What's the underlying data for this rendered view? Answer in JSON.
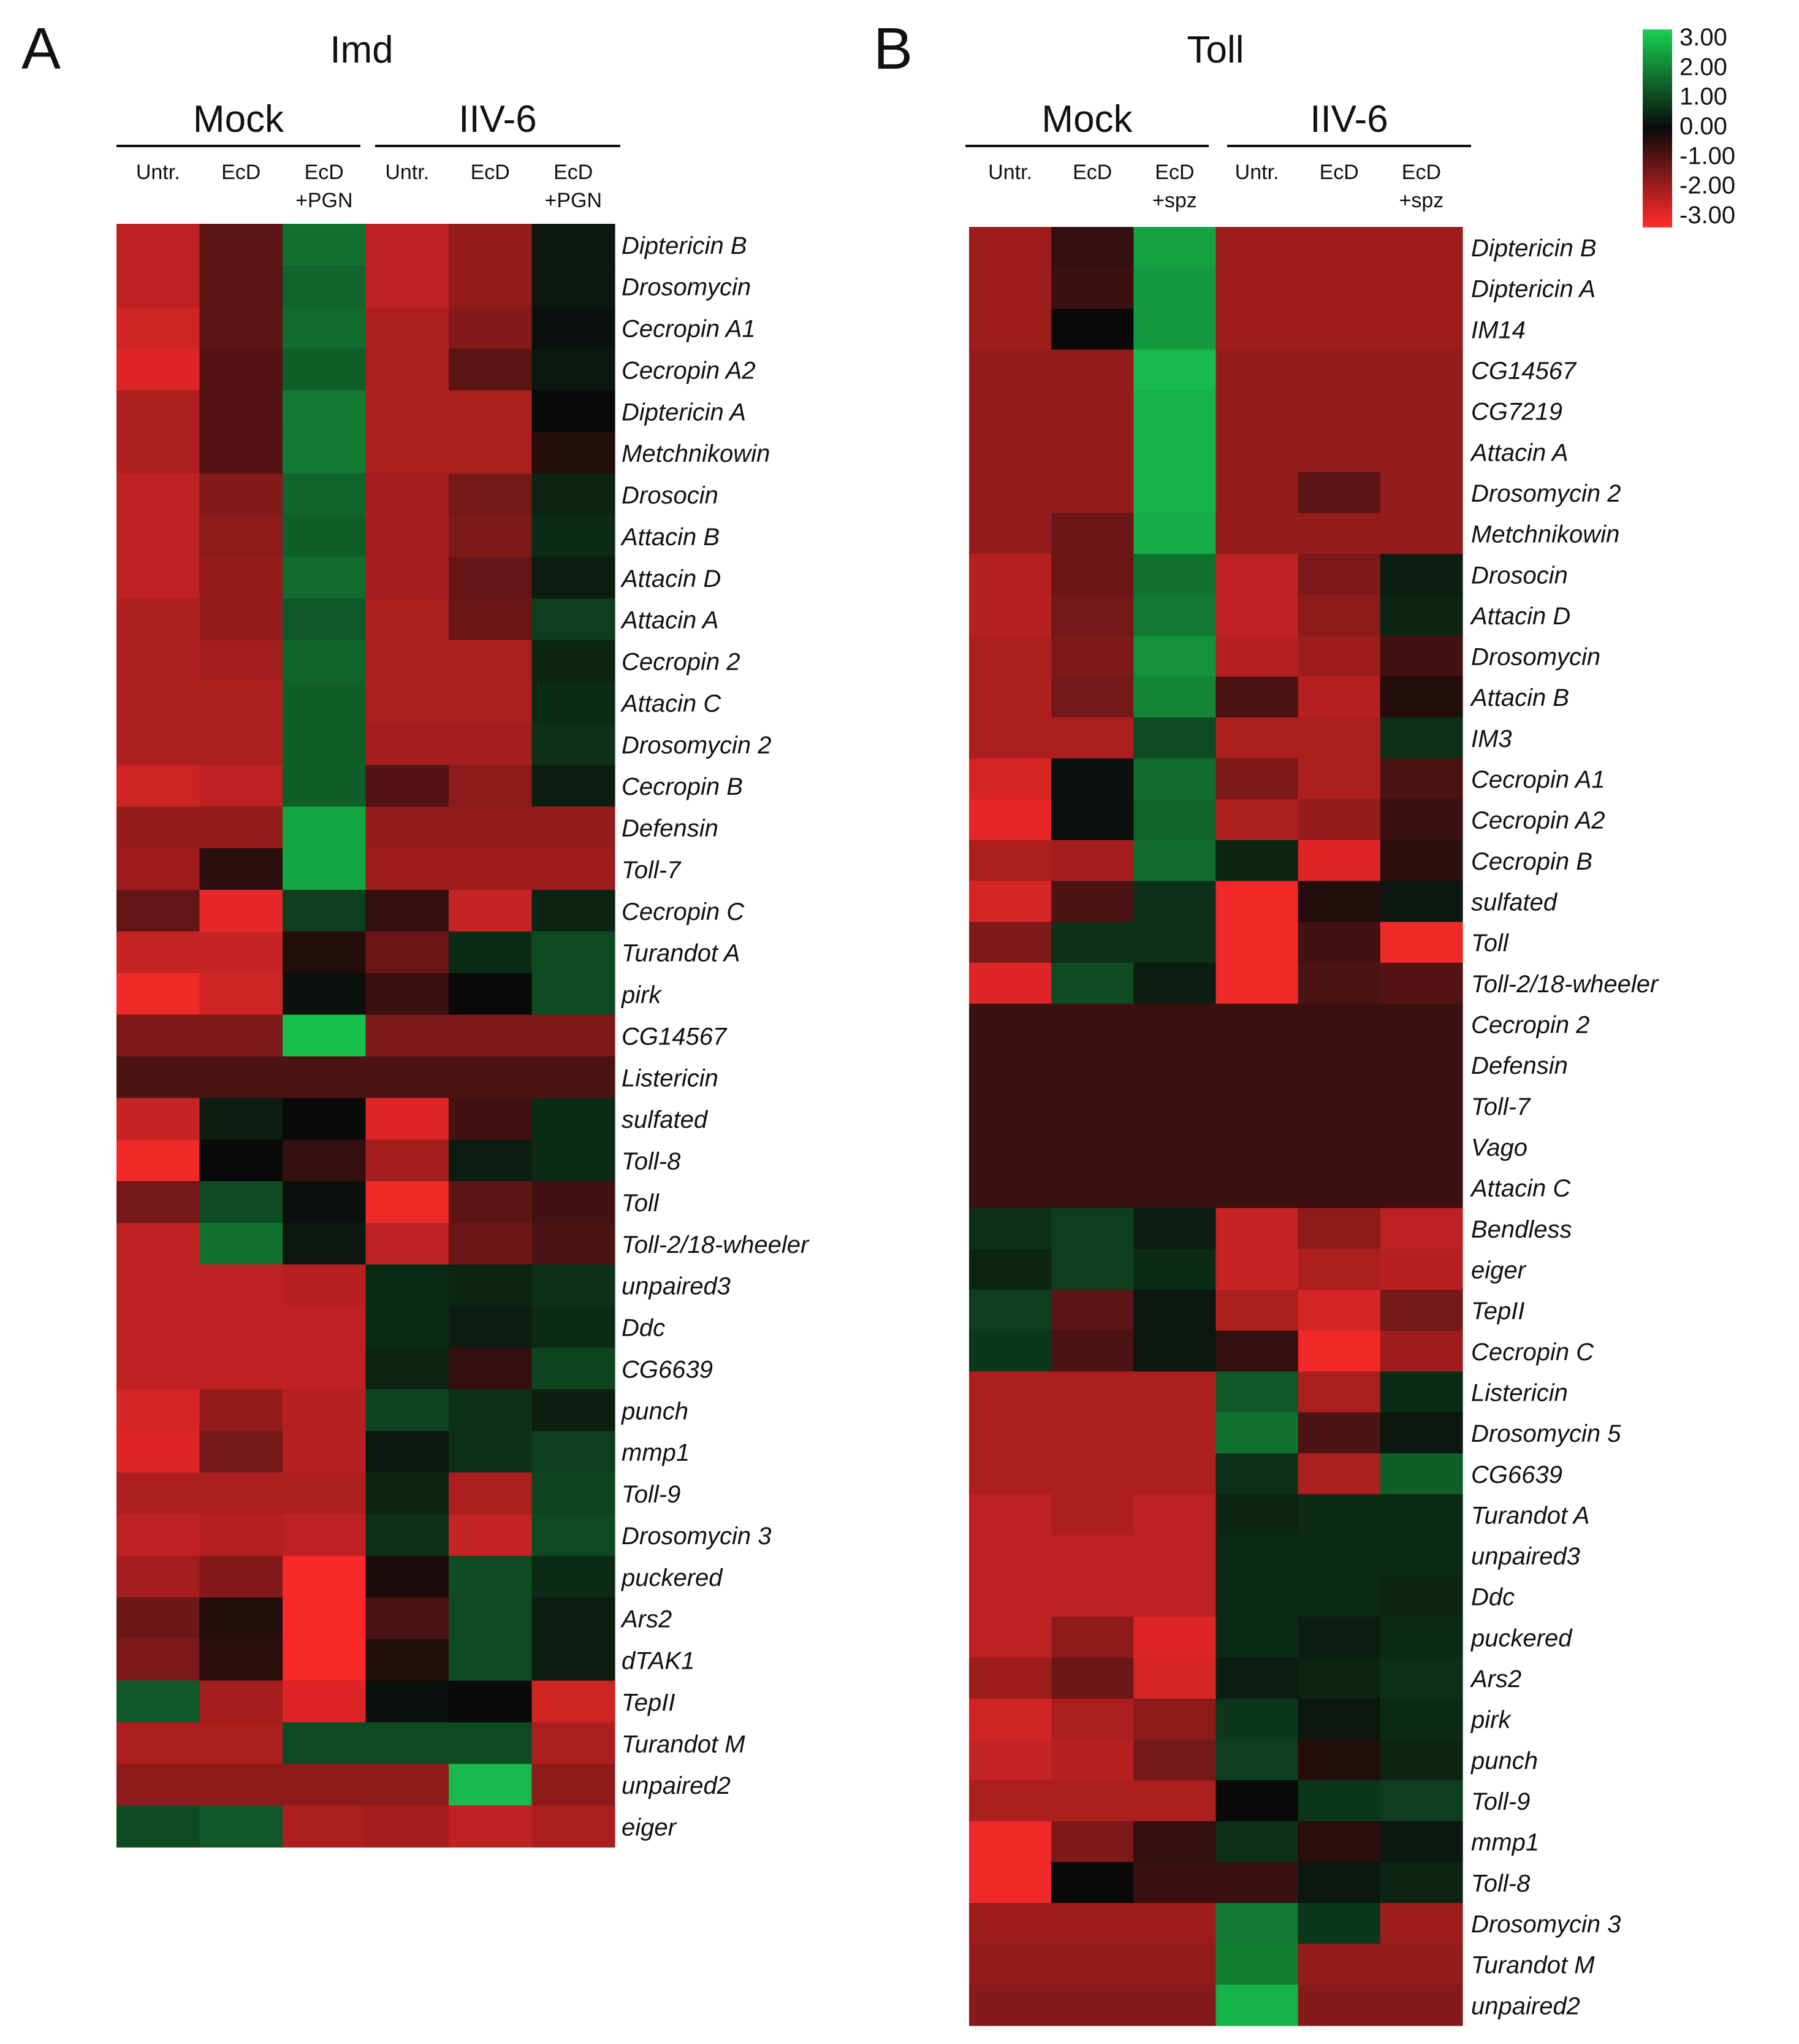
{
  "figure": {
    "legend": {
      "labels": [
        "3.00",
        "2.00",
        "1.00",
        "0.00",
        "-1.00",
        "-2.00",
        "-3.00"
      ],
      "colors": [
        "#18c850",
        "#0f9a3c",
        "#0b5a28",
        "#0a0a0a",
        "#5e0f12",
        "#b81c22",
        "#ff2a2a"
      ]
    }
  },
  "chart_data": [
    {
      "type": "heatmap",
      "panel": "A",
      "title": "Imd",
      "groups": [
        "Mock",
        "IIV-6"
      ],
      "columns": [
        "Untr.",
        "EcD",
        "EcD\n+PGN",
        "Untr.",
        "EcD",
        "EcD\n+PGN"
      ],
      "value_range": [
        -3,
        3
      ],
      "rows": [
        {
          "gene": "Diptericin B",
          "values": [
            -2.2,
            -1.0,
            1.6,
            -2.2,
            -1.7,
            0.2
          ]
        },
        {
          "gene": "Drosomycin",
          "values": [
            -2.2,
            -1.0,
            1.4,
            -2.2,
            -1.7,
            0.2
          ]
        },
        {
          "gene": "Cecropin A1",
          "values": [
            -2.4,
            -1.0,
            1.5,
            -2.0,
            -1.5,
            0.1
          ]
        },
        {
          "gene": "Cecropin A2",
          "values": [
            -2.6,
            -0.9,
            1.3,
            -2.0,
            -1.0,
            0.2
          ]
        },
        {
          "gene": "Diptericin A",
          "values": [
            -2.0,
            -0.9,
            1.7,
            -2.0,
            -2.0,
            0.0
          ]
        },
        {
          "gene": "Metchnikowin",
          "values": [
            -2.0,
            -0.9,
            1.7,
            -2.0,
            -2.0,
            -0.3
          ]
        },
        {
          "gene": "Drosocin",
          "values": [
            -2.2,
            -1.5,
            1.4,
            -1.9,
            -1.3,
            0.4
          ]
        },
        {
          "gene": "Attacin B",
          "values": [
            -2.2,
            -1.6,
            1.3,
            -1.9,
            -1.4,
            0.5
          ]
        },
        {
          "gene": "Attacin D",
          "values": [
            -2.2,
            -1.7,
            1.5,
            -1.9,
            -1.1,
            0.3
          ]
        },
        {
          "gene": "Attacin A",
          "values": [
            -2.0,
            -1.7,
            1.2,
            -2.0,
            -1.2,
            0.8
          ]
        },
        {
          "gene": "Cecropin 2",
          "values": [
            -2.0,
            -1.9,
            1.4,
            -2.0,
            -2.0,
            0.4
          ]
        },
        {
          "gene": "Attacin C",
          "values": [
            -2.0,
            -2.0,
            1.3,
            -2.0,
            -2.0,
            0.5
          ]
        },
        {
          "gene": "Drosomycin 2",
          "values": [
            -2.0,
            -2.0,
            1.3,
            -1.9,
            -1.9,
            0.6
          ]
        },
        {
          "gene": "Cecropin B",
          "values": [
            -2.4,
            -2.2,
            1.3,
            -0.9,
            -1.6,
            0.3
          ]
        },
        {
          "gene": "Defensin",
          "values": [
            -1.7,
            -1.7,
            2.4,
            -1.7,
            -1.7,
            -1.7
          ]
        },
        {
          "gene": "Toll-7",
          "values": [
            -1.8,
            -0.4,
            2.4,
            -1.8,
            -1.8,
            -1.8
          ]
        },
        {
          "gene": "Cecropin C",
          "values": [
            -1.1,
            -2.7,
            0.8,
            -0.5,
            -2.3,
            0.4
          ]
        },
        {
          "gene": "Turandot A",
          "values": [
            -2.3,
            -2.3,
            -0.3,
            -1.2,
            0.5,
            1.0
          ]
        },
        {
          "gene": "pirk",
          "values": [
            -2.8,
            -2.4,
            0.1,
            -0.6,
            0.0,
            1.0
          ]
        },
        {
          "gene": "CG14567",
          "values": [
            -1.4,
            -1.4,
            2.8,
            -1.4,
            -1.4,
            -1.4
          ]
        },
        {
          "gene": "Listericin",
          "values": [
            -0.8,
            -0.8,
            -0.8,
            -0.8,
            -0.8,
            -0.8
          ]
        },
        {
          "gene": "sulfated",
          "values": [
            -2.3,
            0.3,
            0.0,
            -2.6,
            -0.7,
            0.5
          ]
        },
        {
          "gene": "Toll-8",
          "values": [
            -2.8,
            0.0,
            -0.5,
            -1.9,
            0.3,
            0.5
          ]
        },
        {
          "gene": "Toll",
          "values": [
            -1.3,
            1.0,
            0.1,
            -2.8,
            -1.0,
            -0.7
          ]
        },
        {
          "gene": "Toll-2/18-wheeler",
          "values": [
            -2.2,
            1.6,
            0.2,
            -2.2,
            -1.2,
            -0.8
          ]
        },
        {
          "gene": "unpaired3",
          "values": [
            -2.2,
            -2.2,
            -2.1,
            0.5,
            0.4,
            0.6
          ]
        },
        {
          "gene": "Ddc",
          "values": [
            -2.2,
            -2.2,
            -2.2,
            0.5,
            0.3,
            0.5
          ]
        },
        {
          "gene": "CG6639",
          "values": [
            -2.2,
            -2.2,
            -2.2,
            0.4,
            -0.5,
            0.9
          ]
        },
        {
          "gene": "punch",
          "values": [
            -2.5,
            -1.7,
            -2.1,
            0.9,
            0.6,
            0.3
          ]
        },
        {
          "gene": "mmp1",
          "values": [
            -2.6,
            -1.3,
            -2.1,
            0.2,
            0.6,
            0.8
          ]
        },
        {
          "gene": "Toll-9",
          "values": [
            -2.0,
            -2.0,
            -2.0,
            0.4,
            -2.0,
            0.9
          ]
        },
        {
          "gene": "Drosomycin 3",
          "values": [
            -2.2,
            -2.1,
            -2.2,
            0.6,
            -2.3,
            1.0
          ]
        },
        {
          "gene": "puckered",
          "values": [
            -1.9,
            -1.5,
            -2.9,
            -0.2,
            1.0,
            0.5
          ]
        },
        {
          "gene": "Ars2",
          "values": [
            -1.2,
            -0.3,
            -2.9,
            -0.8,
            1.0,
            0.3
          ]
        },
        {
          "gene": "dTAK1",
          "values": [
            -1.4,
            -0.4,
            -2.9,
            -0.3,
            1.0,
            0.3
          ]
        },
        {
          "gene": "TepII",
          "values": [
            1.2,
            -1.9,
            -2.6,
            0.1,
            0.0,
            -2.4
          ]
        },
        {
          "gene": "Turandot M",
          "values": [
            -2.0,
            -2.0,
            1.0,
            1.0,
            1.0,
            -2.0
          ]
        },
        {
          "gene": "unpaired2",
          "values": [
            -1.6,
            -1.6,
            -1.6,
            -1.6,
            2.7,
            -1.6
          ]
        },
        {
          "gene": "eiger",
          "values": [
            1.0,
            1.2,
            -2.0,
            -1.9,
            -2.2,
            -2.0
          ]
        }
      ]
    },
    {
      "type": "heatmap",
      "panel": "B",
      "title": "Toll",
      "groups": [
        "Mock",
        "IIV-6"
      ],
      "columns": [
        "Untr.",
        "EcD",
        "EcD\n+spz",
        "Untr.",
        "EcD",
        "EcD\n+spz"
      ],
      "value_range": [
        -3,
        3
      ],
      "rows": [
        {
          "gene": "Diptericin B",
          "values": [
            -1.8,
            -0.5,
            2.3,
            -1.8,
            -1.8,
            -1.8
          ]
        },
        {
          "gene": "Diptericin A",
          "values": [
            -1.8,
            -0.6,
            2.2,
            -1.8,
            -1.8,
            -1.8
          ]
        },
        {
          "gene": "IM14",
          "values": [
            -1.8,
            0.0,
            2.2,
            -1.8,
            -1.8,
            -1.8
          ]
        },
        {
          "gene": "CG14567",
          "values": [
            -1.7,
            -1.7,
            2.7,
            -1.7,
            -1.7,
            -1.7
          ]
        },
        {
          "gene": "CG7219",
          "values": [
            -1.7,
            -1.7,
            2.6,
            -1.7,
            -1.7,
            -1.7
          ]
        },
        {
          "gene": "Attacin A",
          "values": [
            -1.7,
            -1.7,
            2.6,
            -1.7,
            -1.7,
            -1.7
          ]
        },
        {
          "gene": "Drosomycin 2",
          "values": [
            -1.7,
            -1.7,
            2.6,
            -1.7,
            -1.0,
            -1.7
          ]
        },
        {
          "gene": "Metchnikowin",
          "values": [
            -1.7,
            -1.2,
            2.5,
            -1.7,
            -1.7,
            -1.7
          ]
        },
        {
          "gene": "Drosocin",
          "values": [
            -2.1,
            -1.2,
            1.6,
            -2.2,
            -1.4,
            0.3
          ]
        },
        {
          "gene": "Attacin D",
          "values": [
            -2.1,
            -1.3,
            1.7,
            -2.2,
            -1.6,
            0.4
          ]
        },
        {
          "gene": "Drosomycin",
          "values": [
            -2.0,
            -1.4,
            2.1,
            -2.1,
            -1.8,
            -0.7
          ]
        },
        {
          "gene": "Attacin B",
          "values": [
            -2.0,
            -1.3,
            1.9,
            -0.8,
            -2.1,
            -0.3
          ]
        },
        {
          "gene": "IM3",
          "values": [
            -2.0,
            -2.0,
            1.0,
            -2.0,
            -2.0,
            0.6
          ]
        },
        {
          "gene": "Cecropin A1",
          "values": [
            -2.5,
            0.1,
            1.5,
            -1.4,
            -2.0,
            -0.8
          ]
        },
        {
          "gene": "Cecropin A2",
          "values": [
            -2.7,
            0.1,
            1.4,
            -2.0,
            -1.7,
            -0.6
          ]
        },
        {
          "gene": "Cecropin B",
          "values": [
            -2.0,
            -1.9,
            1.5,
            0.4,
            -2.6,
            -0.4
          ]
        },
        {
          "gene": "sulfated",
          "values": [
            -2.5,
            -0.8,
            0.6,
            -2.8,
            -0.3,
            0.2
          ]
        },
        {
          "gene": "Toll",
          "values": [
            -1.4,
            0.6,
            0.6,
            -2.8,
            -0.7,
            -2.8
          ]
        },
        {
          "gene": "Toll-2/18-wheeler",
          "values": [
            -2.6,
            1.0,
            0.3,
            -2.8,
            -0.8,
            -0.9
          ]
        },
        {
          "gene": "Cecropin 2",
          "values": [
            -0.6,
            -0.6,
            -0.6,
            -0.6,
            -0.6,
            -0.6
          ]
        },
        {
          "gene": "Defensin",
          "values": [
            -0.6,
            -0.6,
            -0.6,
            -0.6,
            -0.6,
            -0.6
          ]
        },
        {
          "gene": "Toll-7",
          "values": [
            -0.6,
            -0.6,
            -0.6,
            -0.6,
            -0.6,
            -0.6
          ]
        },
        {
          "gene": "Vago",
          "values": [
            -0.6,
            -0.6,
            -0.6,
            -0.6,
            -0.6,
            -0.6
          ]
        },
        {
          "gene": "Attacin C",
          "values": [
            -0.6,
            -0.6,
            -0.6,
            -0.6,
            -0.6,
            -0.6
          ]
        },
        {
          "gene": "Bendless",
          "values": [
            0.6,
            0.8,
            0.3,
            -2.3,
            -1.6,
            -2.2
          ]
        },
        {
          "gene": "eiger",
          "values": [
            0.4,
            0.8,
            0.5,
            -2.3,
            -2.0,
            -2.1
          ]
        },
        {
          "gene": "TepII",
          "values": [
            0.8,
            -1.0,
            0.2,
            -2.0,
            -2.5,
            -1.3
          ]
        },
        {
          "gene": "Cecropin C",
          "values": [
            0.7,
            -0.8,
            0.2,
            -0.5,
            -2.8,
            -1.8
          ]
        },
        {
          "gene": "Listericin",
          "values": [
            -2.0,
            -2.0,
            -2.0,
            1.2,
            -2.0,
            0.5
          ]
        },
        {
          "gene": "Drosomycin 5",
          "values": [
            -2.0,
            -2.0,
            -2.0,
            1.6,
            -0.8,
            0.2
          ]
        },
        {
          "gene": "CG6639",
          "values": [
            -2.0,
            -2.0,
            -2.0,
            0.6,
            -2.0,
            1.3
          ]
        },
        {
          "gene": "Turandot A",
          "values": [
            -2.2,
            -2.0,
            -2.2,
            0.4,
            0.5,
            0.5
          ]
        },
        {
          "gene": "unpaired3",
          "values": [
            -2.2,
            -2.2,
            -2.2,
            0.5,
            0.5,
            0.5
          ]
        },
        {
          "gene": "Ddc",
          "values": [
            -2.2,
            -2.2,
            -2.2,
            0.5,
            0.5,
            0.4
          ]
        },
        {
          "gene": "puckered",
          "values": [
            -2.2,
            -1.6,
            -2.6,
            0.5,
            0.3,
            0.5
          ]
        },
        {
          "gene": "Ars2",
          "values": [
            -1.8,
            -1.2,
            -2.5,
            0.3,
            0.4,
            0.6
          ]
        },
        {
          "gene": "pirk",
          "values": [
            -2.4,
            -2.0,
            -1.6,
            0.7,
            0.2,
            0.5
          ]
        },
        {
          "gene": "punch",
          "values": [
            -2.3,
            -2.1,
            -1.3,
            0.8,
            -0.3,
            0.4
          ]
        },
        {
          "gene": "Toll-9",
          "values": [
            -2.0,
            -2.0,
            -2.0,
            0.0,
            0.7,
            0.8
          ]
        },
        {
          "gene": "mmp1",
          "values": [
            -2.8,
            -1.4,
            -0.5,
            0.6,
            -0.4,
            0.2
          ]
        },
        {
          "gene": "Toll-8",
          "values": [
            -2.8,
            0.0,
            -0.6,
            -0.6,
            0.2,
            0.4
          ]
        },
        {
          "gene": "Drosomycin 3",
          "values": [
            -1.8,
            -1.8,
            -1.8,
            1.7,
            0.7,
            -1.8
          ]
        },
        {
          "gene": "Turandot M",
          "values": [
            -1.7,
            -1.7,
            -1.7,
            1.8,
            -1.7,
            -1.7
          ]
        },
        {
          "gene": "unpaired2",
          "values": [
            -1.5,
            -1.5,
            -1.5,
            2.6,
            -1.5,
            -1.5
          ]
        }
      ]
    }
  ]
}
